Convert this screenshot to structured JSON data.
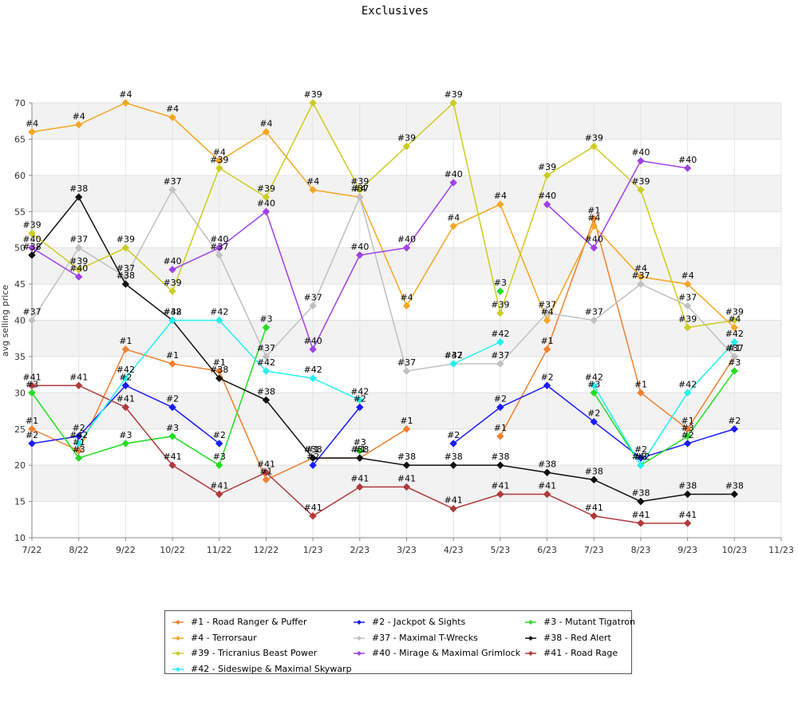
{
  "chart_data": {
    "type": "line",
    "title": "Exclusives",
    "ylabel": "avg selling price",
    "xlabel": "",
    "ylim": [
      10,
      70
    ],
    "yticks": [
      10,
      15,
      20,
      25,
      30,
      35,
      40,
      45,
      50,
      55,
      60,
      65,
      70
    ],
    "categories": [
      "7/22",
      "8/22",
      "9/22",
      "10/22",
      "11/22",
      "12/22",
      "1/23",
      "2/23",
      "3/23",
      "4/23",
      "5/23",
      "6/23",
      "7/23",
      "8/23",
      "9/23",
      "10/23",
      "11/23"
    ],
    "grid": "horizontal bands",
    "legend_position": "bottom",
    "series": [
      {
        "name": "#1 - Road Ranger & Puffer",
        "label": "#1",
        "color": "#f08030",
        "values": [
          25,
          22,
          36,
          34,
          33,
          18,
          21,
          21,
          25,
          null,
          24,
          36,
          54,
          30,
          25,
          35,
          null
        ]
      },
      {
        "name": "#2 - Jackpot & Sights",
        "label": "#2",
        "color": "#1a1aff",
        "values": [
          23,
          24,
          31,
          28,
          23,
          null,
          20,
          28,
          null,
          23,
          28,
          31,
          26,
          21,
          23,
          25,
          null
        ]
      },
      {
        "name": "#3 - Mutant Tigatron",
        "label": "#3",
        "color": "#22dd22",
        "values": [
          30,
          21,
          23,
          24,
          20,
          39,
          null,
          22,
          null,
          null,
          44,
          null,
          30,
          20,
          24,
          33,
          null
        ]
      },
      {
        "name": "#4 - Terrorsaur",
        "label": "#4",
        "color": "#f5a623",
        "values": [
          66,
          67,
          70,
          68,
          62,
          66,
          58,
          57,
          42,
          53,
          56,
          40,
          53,
          46,
          45,
          39,
          null
        ]
      },
      {
        "name": "#37 - Maximal T-Wrecks",
        "label": "#37",
        "color": "#c0c0c0",
        "values": [
          40,
          50,
          46,
          58,
          49,
          35,
          42,
          57,
          33,
          34,
          34,
          41,
          40,
          45,
          42,
          35,
          null
        ]
      },
      {
        "name": "#38 - Red Alert",
        "label": "#38",
        "color": "#111111",
        "values": [
          49,
          57,
          45,
          40,
          32,
          29,
          21,
          21,
          20,
          20,
          20,
          19,
          18,
          15,
          16,
          16,
          null
        ]
      },
      {
        "name": "#39 - Tricranius Beast Power",
        "label": "#39",
        "color": "#cccc22",
        "values": [
          52,
          47,
          50,
          44,
          61,
          57,
          70,
          58,
          64,
          70,
          41,
          60,
          64,
          58,
          39,
          40,
          null
        ]
      },
      {
        "name": "#40 - Mirage & Maximal Grimlock",
        "label": "#40",
        "color": "#a040e8",
        "values": [
          50,
          46,
          null,
          47,
          50,
          55,
          36,
          49,
          50,
          59,
          null,
          56,
          50,
          62,
          61,
          null,
          null
        ]
      },
      {
        "name": "#41 - Road Rage",
        "label": "#41",
        "color": "#b03a3a",
        "values": [
          31,
          31,
          28,
          20,
          16,
          19,
          13,
          17,
          17,
          14,
          16,
          16,
          13,
          12,
          12,
          null,
          null
        ]
      },
      {
        "name": "#42 - Sideswipe & Maximal Skywarp",
        "label": "#42",
        "color": "#22f0f0",
        "values": [
          null,
          23,
          32,
          40,
          40,
          33,
          32,
          29,
          null,
          34,
          37,
          null,
          31,
          20,
          30,
          37,
          null
        ]
      }
    ]
  }
}
